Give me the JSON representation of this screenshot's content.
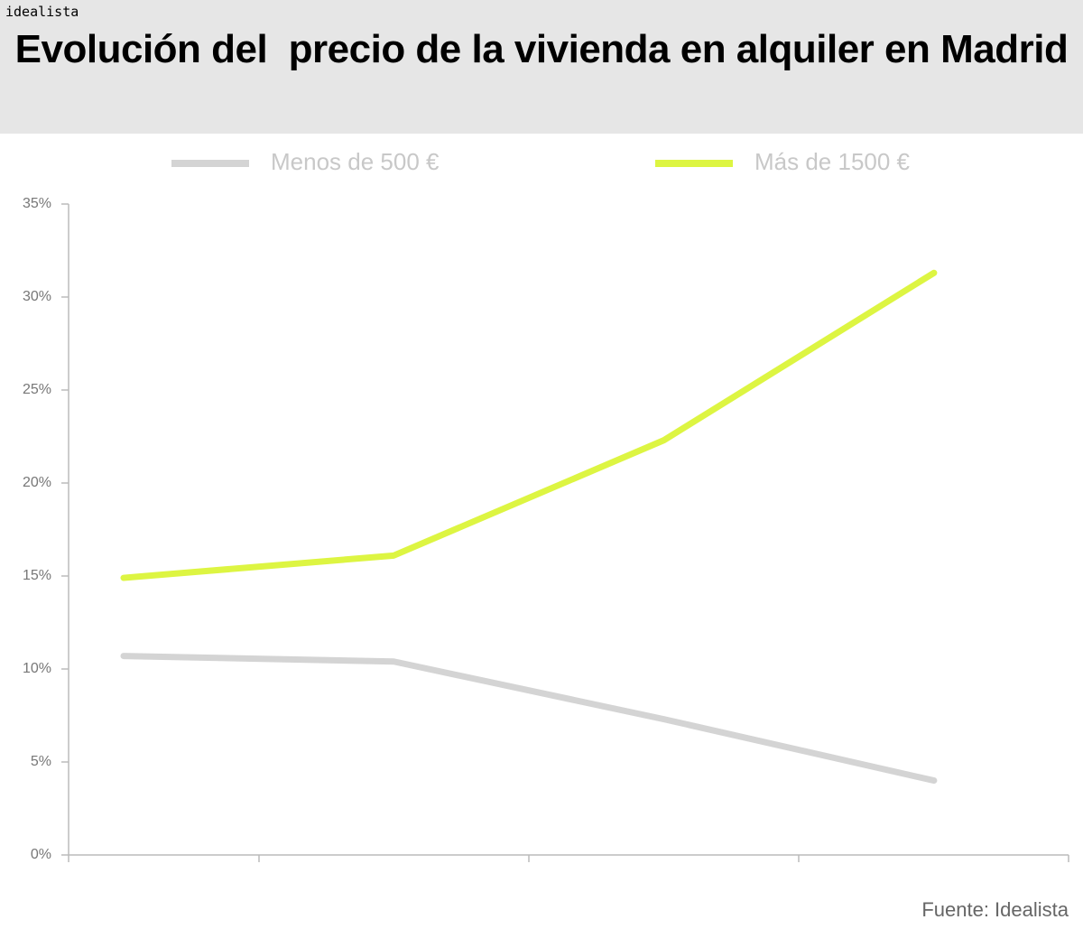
{
  "logo": "idealista",
  "chart_data": {
    "type": "line",
    "title": "Evolución del  precio de la vivienda en alquiler en Madrid",
    "categories": [
      null,
      null,
      null,
      null
    ],
    "series": [
      {
        "name": "Menos de 500 €",
        "color": "#d4d4d4",
        "values": [
          10.7,
          10.4,
          7.3,
          4.0
        ]
      },
      {
        "name": "Más de 1500 €",
        "color": "#ddf542",
        "values": [
          14.9,
          16.1,
          22.3,
          31.3
        ]
      }
    ],
    "ylim": [
      0,
      35
    ],
    "yticks": [
      {
        "value": 0,
        "label": "0%"
      },
      {
        "value": 5,
        "label": "5%"
      },
      {
        "value": 10,
        "label": "10%"
      },
      {
        "value": 15,
        "label": "15%"
      },
      {
        "value": 20,
        "label": "20%"
      },
      {
        "value": 25,
        "label": "25%"
      },
      {
        "value": 30,
        "label": "30%"
      },
      {
        "value": 35,
        "label": "35%"
      }
    ],
    "source": "Fuente: Idealista"
  }
}
